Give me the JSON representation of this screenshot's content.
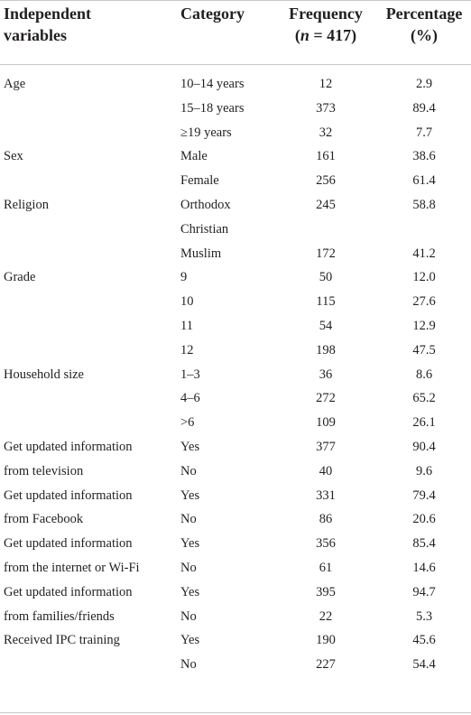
{
  "header": {
    "var_line1": "Independent",
    "var_line2": "variables",
    "cat": "Category",
    "freq_line1": "Frequency",
    "freq_open": "(",
    "freq_n": "n",
    "freq_eq": " = 417)",
    "pct_line1": "Percentage",
    "pct_line2": "(%)"
  },
  "rows": [
    {
      "var": "Age",
      "cat": "10–14 years",
      "freq": "12",
      "pct": "2.9"
    },
    {
      "var": "",
      "cat": "15–18 years",
      "freq": "373",
      "pct": "89.4"
    },
    {
      "var": "",
      "cat": "≥19 years",
      "freq": "32",
      "pct": "7.7"
    },
    {
      "var": "Sex",
      "cat": "Male",
      "freq": "161",
      "pct": "38.6"
    },
    {
      "var": "",
      "cat": "Female",
      "freq": "256",
      "pct": "61.4"
    },
    {
      "var": "Religion",
      "cat": "Orthodox",
      "freq": "245",
      "pct": "58.8"
    },
    {
      "var": "",
      "cat": "Christian",
      "freq": "",
      "pct": ""
    },
    {
      "var": "",
      "cat": "Muslim",
      "freq": "172",
      "pct": "41.2"
    },
    {
      "var": "Grade",
      "cat": "9",
      "freq": "50",
      "pct": "12.0"
    },
    {
      "var": "",
      "cat": "10",
      "freq": "115",
      "pct": "27.6"
    },
    {
      "var": "",
      "cat": "11",
      "freq": "54",
      "pct": "12.9"
    },
    {
      "var": "",
      "cat": "12",
      "freq": "198",
      "pct": "47.5"
    },
    {
      "var": "Household size",
      "cat": "1–3",
      "freq": "36",
      "pct": "8.6"
    },
    {
      "var": "",
      "cat": "4–6",
      "freq": "272",
      "pct": "65.2"
    },
    {
      "var": "",
      "cat": ">6",
      "freq": "109",
      "pct": "26.1"
    },
    {
      "var": "Get updated information",
      "cat": "Yes",
      "freq": "377",
      "pct": "90.4"
    },
    {
      "var": "from television",
      "cat": "No",
      "freq": "40",
      "pct": "9.6"
    },
    {
      "var": "Get updated information",
      "cat": "Yes",
      "freq": "331",
      "pct": "79.4"
    },
    {
      "var": "from Facebook",
      "cat": "No",
      "freq": "86",
      "pct": "20.6"
    },
    {
      "var": "Get updated information",
      "cat": "Yes",
      "freq": "356",
      "pct": "85.4"
    },
    {
      "var": "from the internet or Wi-Fi",
      "cat": "No",
      "freq": "61",
      "pct": "14.6"
    },
    {
      "var": "Get updated information",
      "cat": "Yes",
      "freq": "395",
      "pct": "94.7"
    },
    {
      "var": "from families/friends",
      "cat": "No",
      "freq": "22",
      "pct": "5.3"
    },
    {
      "var": "Received IPC training",
      "cat": "Yes",
      "freq": "190",
      "pct": "45.6"
    },
    {
      "var": "",
      "cat": "No",
      "freq": "227",
      "pct": "54.4"
    }
  ]
}
